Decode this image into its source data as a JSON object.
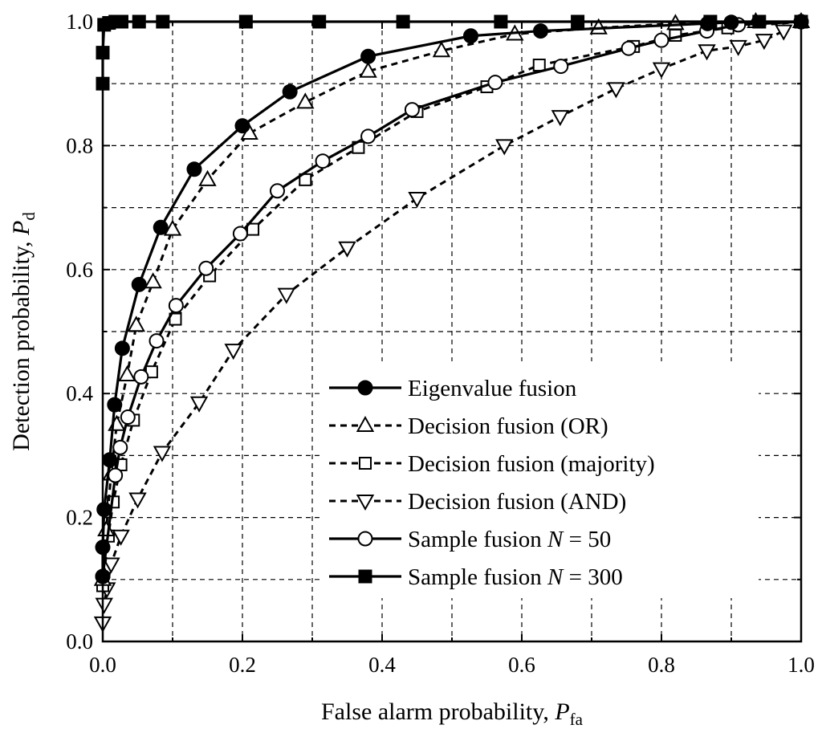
{
  "chart_data": {
    "type": "line",
    "title": "",
    "xlabel": "False alarm probability, ",
    "xlabel_var": "P",
    "xlabel_sub": "fa",
    "ylabel": "Detection probability, ",
    "ylabel_var": "P",
    "ylabel_sub": "d",
    "xlim": [
      0,
      1
    ],
    "ylim": [
      0,
      1
    ],
    "xticks": [
      "0.0",
      "0.2",
      "0.4",
      "0.6",
      "0.8",
      "1.0"
    ],
    "yticks": [
      "0.0",
      "0.2",
      "0.4",
      "0.6",
      "0.8",
      "1.0"
    ],
    "grid": "dashed",
    "legend_position": "bottom-right",
    "series": [
      {
        "name": "Eigenvalue fusion",
        "name_parts": [
          "Eigenvalue fusion"
        ],
        "line": "solid",
        "marker": "circle-filled",
        "x": [
          0.0,
          0.0,
          0.002,
          0.01,
          0.017,
          0.028,
          0.052,
          0.083,
          0.131,
          0.2,
          0.268,
          0.38,
          0.527,
          0.627,
          0.866,
          0.9,
          1.0
        ],
        "y": [
          0.105,
          0.152,
          0.213,
          0.293,
          0.382,
          0.473,
          0.576,
          0.668,
          0.762,
          0.832,
          0.887,
          0.944,
          0.977,
          0.985,
          0.997,
          0.999,
          1.0
        ]
      },
      {
        "name": "Decision fusion (OR)",
        "name_parts": [
          "Decision fusion (OR)"
        ],
        "line": "dashed",
        "marker": "triangle-up",
        "x": [
          0.0,
          0.005,
          0.012,
          0.02,
          0.035,
          0.048,
          0.072,
          0.1,
          0.15,
          0.21,
          0.29,
          0.38,
          0.485,
          0.59,
          0.71,
          0.82,
          0.935,
          1.0
        ],
        "y": [
          0.1,
          0.18,
          0.27,
          0.35,
          0.43,
          0.51,
          0.58,
          0.665,
          0.745,
          0.82,
          0.87,
          0.92,
          0.953,
          0.98,
          0.99,
          0.997,
          1.0,
          1.0
        ]
      },
      {
        "name": "Decision fusion (majority)",
        "name_parts": [
          "Decision fusion (majority)"
        ],
        "line": "dashed",
        "marker": "square-open",
        "x": [
          0.0,
          0.008,
          0.015,
          0.026,
          0.044,
          0.07,
          0.104,
          0.153,
          0.215,
          0.29,
          0.366,
          0.45,
          0.55,
          0.625,
          0.76,
          0.82,
          0.895,
          1.0
        ],
        "y": [
          0.09,
          0.17,
          0.225,
          0.285,
          0.357,
          0.435,
          0.52,
          0.59,
          0.665,
          0.745,
          0.797,
          0.855,
          0.895,
          0.93,
          0.96,
          0.978,
          0.99,
          1.0
        ]
      },
      {
        "name": "Decision fusion (AND)",
        "name_parts": [
          "Decision fusion (AND)"
        ],
        "line": "dashed",
        "marker": "triangle-down",
        "x": [
          0.0,
          0.002,
          0.006,
          0.012,
          0.026,
          0.05,
          0.085,
          0.138,
          0.187,
          0.263,
          0.35,
          0.45,
          0.575,
          0.655,
          0.735,
          0.8,
          0.865,
          0.91,
          0.947,
          0.975
        ],
        "y": [
          0.03,
          0.06,
          0.085,
          0.125,
          0.17,
          0.23,
          0.305,
          0.385,
          0.47,
          0.56,
          0.635,
          0.715,
          0.8,
          0.847,
          0.892,
          0.924,
          0.953,
          0.96,
          0.97,
          0.985
        ]
      },
      {
        "name": "Sample fusion N = 50",
        "name_parts": [
          "Sample fusion ",
          "N",
          " = 50"
        ],
        "line": "solid",
        "marker": "circle-open",
        "x": [
          0.0,
          0.018,
          0.025,
          0.036,
          0.055,
          0.077,
          0.105,
          0.148,
          0.197,
          0.25,
          0.315,
          0.38,
          0.443,
          0.562,
          0.656,
          0.753,
          0.8,
          0.865,
          0.91,
          1.0
        ],
        "y": [
          0.105,
          0.268,
          0.313,
          0.362,
          0.427,
          0.485,
          0.542,
          0.602,
          0.658,
          0.727,
          0.775,
          0.815,
          0.858,
          0.902,
          0.928,
          0.957,
          0.97,
          0.985,
          0.995,
          1.0
        ]
      },
      {
        "name": "Sample fusion N = 300",
        "name_parts": [
          "Sample fusion ",
          "N",
          " = 300"
        ],
        "line": "solid",
        "marker": "square-filled",
        "x": [
          0.0,
          0.0,
          0.002,
          0.009,
          0.018,
          0.027,
          0.052,
          0.086,
          0.205,
          0.31,
          0.43,
          0.57,
          0.68,
          0.87,
          0.94,
          1.0
        ],
        "y": [
          0.9,
          0.95,
          0.995,
          0.998,
          1.0,
          1.0,
          1.0,
          1.0,
          1.0,
          1.0,
          1.0,
          1.0,
          1.0,
          1.0,
          1.0,
          1.0
        ]
      }
    ]
  }
}
